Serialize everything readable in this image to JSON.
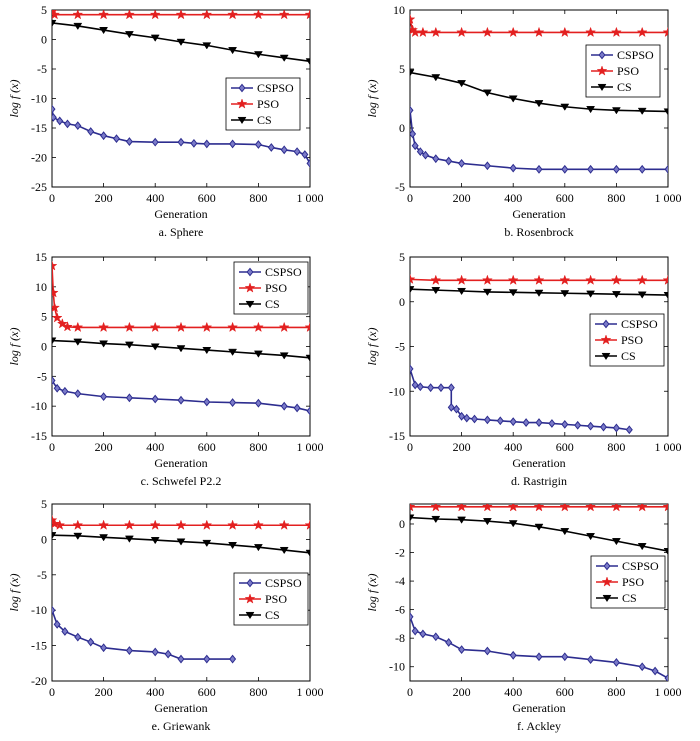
{
  "chart_data": [
    {
      "type": "line",
      "caption": "a. Sphere",
      "xlabel": "Generation",
      "ylabel": "log f (x)",
      "xlim": [
        0,
        1000
      ],
      "ylim": [
        -25,
        5
      ],
      "xticks": [
        0,
        200,
        400,
        600,
        800,
        1000
      ],
      "xtick_labels": [
        "0",
        "200",
        "400",
        "600",
        "800",
        "1 000"
      ],
      "yticks": [
        -25,
        -20,
        -15,
        -10,
        -5,
        0,
        5
      ],
      "legend": "right",
      "series": [
        {
          "name": "CSPSO",
          "color": "#2d2d8f",
          "marker": "diamond",
          "x": [
            0,
            5,
            30,
            60,
            100,
            150,
            200,
            250,
            300,
            400,
            500,
            550,
            600,
            700,
            800,
            850,
            900,
            950,
            980,
            1000
          ],
          "y": [
            -11.8,
            -13.2,
            -13.8,
            -14.3,
            -14.6,
            -15.6,
            -16.3,
            -16.8,
            -17.3,
            -17.4,
            -17.4,
            -17.6,
            -17.7,
            -17.7,
            -17.8,
            -18.3,
            -18.7,
            -19.0,
            -19.5,
            -21.0
          ]
        },
        {
          "name": "PSO",
          "color": "#e32020",
          "marker": "star",
          "x": [
            0,
            10,
            100,
            200,
            300,
            400,
            500,
            600,
            700,
            800,
            900,
            1000
          ],
          "y": [
            4.7,
            4.2,
            4.2,
            4.2,
            4.2,
            4.2,
            4.2,
            4.2,
            4.2,
            4.2,
            4.2,
            4.2
          ]
        },
        {
          "name": "CS",
          "color": "#000000",
          "marker": "triangle-down",
          "x": [
            0,
            100,
            200,
            300,
            400,
            500,
            600,
            700,
            800,
            900,
            1000
          ],
          "y": [
            2.8,
            2.3,
            1.6,
            0.9,
            0.3,
            -0.4,
            -1.0,
            -1.8,
            -2.5,
            -3.1,
            -3.7
          ]
        }
      ]
    },
    {
      "type": "line",
      "caption": "b. Rosenbrock",
      "xlabel": "Generation",
      "ylabel": "log f (x)",
      "xlim": [
        0,
        1000
      ],
      "ylim": [
        -5,
        10
      ],
      "xticks": [
        0,
        200,
        400,
        600,
        800,
        1000
      ],
      "xtick_labels": [
        "0",
        "200",
        "400",
        "600",
        "800",
        "1 000"
      ],
      "yticks": [
        -5,
        0,
        5,
        10
      ],
      "legend": "right",
      "series": [
        {
          "name": "CSPSO",
          "color": "#2d2d8f",
          "marker": "diamond",
          "x": [
            0,
            10,
            20,
            40,
            60,
            100,
            150,
            200,
            300,
            400,
            500,
            600,
            700,
            800,
            900,
            1000
          ],
          "y": [
            1.5,
            -0.5,
            -1.5,
            -2.0,
            -2.3,
            -2.6,
            -2.8,
            -3.0,
            -3.2,
            -3.4,
            -3.5,
            -3.5,
            -3.5,
            -3.5,
            -3.5,
            -3.5
          ]
        },
        {
          "name": "PSO",
          "color": "#e32020",
          "marker": "star",
          "x": [
            0,
            10,
            20,
            50,
            100,
            200,
            300,
            400,
            500,
            600,
            700,
            800,
            900,
            1000
          ],
          "y": [
            9.2,
            8.3,
            8.1,
            8.1,
            8.1,
            8.1,
            8.1,
            8.1,
            8.1,
            8.1,
            8.1,
            8.1,
            8.1,
            8.1
          ]
        },
        {
          "name": "CS",
          "color": "#000000",
          "marker": "triangle-down",
          "x": [
            0,
            100,
            200,
            300,
            400,
            500,
            600,
            700,
            800,
            900,
            1000
          ],
          "y": [
            4.7,
            4.3,
            3.8,
            3.0,
            2.5,
            2.1,
            1.8,
            1.6,
            1.5,
            1.45,
            1.4
          ]
        }
      ]
    },
    {
      "type": "line",
      "caption": "c. Schwefel P2.2",
      "xlabel": "Generation",
      "ylabel": "log f (x)",
      "xlim": [
        0,
        1000
      ],
      "ylim": [
        -15,
        15
      ],
      "xticks": [
        0,
        200,
        400,
        600,
        800,
        1000
      ],
      "xtick_labels": [
        "0",
        "200",
        "400",
        "600",
        "800",
        "1 000"
      ],
      "yticks": [
        -15,
        -10,
        -5,
        0,
        5,
        10,
        15
      ],
      "legend": "top-right",
      "series": [
        {
          "name": "CSPSO",
          "color": "#2d2d8f",
          "marker": "diamond",
          "x": [
            0,
            20,
            50,
            100,
            200,
            300,
            400,
            500,
            600,
            700,
            800,
            900,
            950,
            1000
          ],
          "y": [
            -5.7,
            -7.0,
            -7.5,
            -7.9,
            -8.4,
            -8.6,
            -8.8,
            -9.0,
            -9.3,
            -9.4,
            -9.5,
            -10.0,
            -10.3,
            -10.8
          ]
        },
        {
          "name": "PSO",
          "color": "#e32020",
          "marker": "star",
          "x": [
            0,
            5,
            10,
            20,
            40,
            60,
            100,
            200,
            300,
            400,
            500,
            600,
            700,
            800,
            900,
            1000
          ],
          "y": [
            13.5,
            9.0,
            6.5,
            4.8,
            3.8,
            3.3,
            3.2,
            3.2,
            3.2,
            3.2,
            3.2,
            3.2,
            3.2,
            3.2,
            3.2,
            3.2
          ]
        },
        {
          "name": "CS",
          "color": "#000000",
          "marker": "triangle-down",
          "x": [
            0,
            100,
            200,
            300,
            400,
            500,
            600,
            700,
            800,
            900,
            1000
          ],
          "y": [
            1.0,
            0.8,
            0.5,
            0.3,
            0.0,
            -0.3,
            -0.6,
            -0.9,
            -1.2,
            -1.5,
            -1.9
          ]
        }
      ]
    },
    {
      "type": "line",
      "caption": "d. Rastrigin",
      "xlabel": "Generation",
      "ylabel": "log f (x)",
      "xlim": [
        0,
        1000
      ],
      "ylim": [
        -15,
        5
      ],
      "xticks": [
        0,
        200,
        400,
        600,
        800,
        1000
      ],
      "xtick_labels": [
        "0",
        "200",
        "400",
        "600",
        "800",
        "1 000"
      ],
      "yticks": [
        -15,
        -10,
        -5,
        0,
        5
      ],
      "legend": "right",
      "series": [
        {
          "name": "CSPSO",
          "color": "#2d2d8f",
          "marker": "diamond",
          "x": [
            0,
            20,
            40,
            80,
            120,
            160,
            160,
            180,
            200,
            220,
            250,
            300,
            350,
            400,
            450,
            500,
            550,
            600,
            650,
            700,
            750,
            800,
            850
          ],
          "y": [
            -7.5,
            -9.3,
            -9.5,
            -9.6,
            -9.6,
            -9.6,
            -11.8,
            -12.0,
            -12.8,
            -13.0,
            -13.1,
            -13.2,
            -13.3,
            -13.4,
            -13.5,
            -13.5,
            -13.6,
            -13.7,
            -13.8,
            -13.9,
            -14.0,
            -14.1,
            -14.3
          ]
        },
        {
          "name": "PSO",
          "color": "#e32020",
          "marker": "star",
          "x": [
            0,
            100,
            200,
            300,
            400,
            500,
            600,
            700,
            800,
            900,
            1000
          ],
          "y": [
            2.5,
            2.4,
            2.4,
            2.4,
            2.4,
            2.4,
            2.4,
            2.4,
            2.4,
            2.4,
            2.4
          ]
        },
        {
          "name": "CS",
          "color": "#000000",
          "marker": "triangle-down",
          "x": [
            0,
            100,
            200,
            300,
            400,
            500,
            600,
            700,
            800,
            900,
            1000
          ],
          "y": [
            1.4,
            1.3,
            1.2,
            1.1,
            1.05,
            1.0,
            0.95,
            0.9,
            0.85,
            0.8,
            0.75
          ]
        }
      ]
    },
    {
      "type": "line",
      "caption": "e. Griewank",
      "xlabel": "Generation",
      "ylabel": "log f (x)",
      "xlim": [
        0,
        1000
      ],
      "ylim": [
        -20,
        5
      ],
      "xticks": [
        0,
        200,
        400,
        600,
        800,
        1000
      ],
      "xtick_labels": [
        "0",
        "200",
        "400",
        "600",
        "800",
        "1 000"
      ],
      "yticks": [
        -20,
        -15,
        -10,
        -5,
        0,
        5
      ],
      "legend": "right",
      "series": [
        {
          "name": "CSPSO",
          "color": "#2d2d8f",
          "marker": "diamond",
          "x": [
            0,
            20,
            50,
            100,
            150,
            200,
            300,
            400,
            450,
            500,
            600,
            700
          ],
          "y": [
            -10.0,
            -12.0,
            -13.0,
            -13.8,
            -14.5,
            -15.3,
            -15.7,
            -15.9,
            -16.2,
            -16.9,
            -16.9,
            -16.9
          ]
        },
        {
          "name": "PSO",
          "color": "#e32020",
          "marker": "star",
          "x": [
            0,
            10,
            30,
            100,
            200,
            300,
            400,
            500,
            600,
            700,
            800,
            900,
            1000
          ],
          "y": [
            2.7,
            2.2,
            2.0,
            2.0,
            2.0,
            2.0,
            2.0,
            2.0,
            2.0,
            2.0,
            2.0,
            2.0,
            2.0
          ]
        },
        {
          "name": "CS",
          "color": "#000000",
          "marker": "triangle-down",
          "x": [
            0,
            100,
            200,
            300,
            400,
            500,
            600,
            700,
            800,
            900,
            1000
          ],
          "y": [
            0.6,
            0.5,
            0.3,
            0.1,
            -0.1,
            -0.3,
            -0.5,
            -0.8,
            -1.1,
            -1.5,
            -1.9
          ]
        }
      ]
    },
    {
      "type": "line",
      "caption": "f. Ackley",
      "xlabel": "Generation",
      "ylabel": "log f (x)",
      "xlim": [
        0,
        1000
      ],
      "ylim": [
        -11,
        1.4
      ],
      "xticks": [
        0,
        200,
        400,
        600,
        800,
        1000
      ],
      "xtick_labels": [
        "0",
        "200",
        "400",
        "600",
        "800",
        "1 000"
      ],
      "yticks": [
        -10,
        -8,
        -6,
        -4,
        -2,
        0
      ],
      "legend": "right",
      "series": [
        {
          "name": "CSPSO",
          "color": "#2d2d8f",
          "marker": "diamond",
          "x": [
            0,
            20,
            50,
            100,
            150,
            200,
            300,
            400,
            500,
            600,
            700,
            800,
            900,
            950,
            1000
          ],
          "y": [
            -6.5,
            -7.5,
            -7.7,
            -7.9,
            -8.3,
            -8.8,
            -8.9,
            -9.2,
            -9.3,
            -9.3,
            -9.5,
            -9.7,
            -10.0,
            -10.3,
            -10.8
          ]
        },
        {
          "name": "PSO",
          "color": "#e32020",
          "marker": "star",
          "x": [
            0,
            100,
            200,
            300,
            400,
            500,
            600,
            700,
            800,
            900,
            1000
          ],
          "y": [
            1.2,
            1.2,
            1.2,
            1.2,
            1.2,
            1.2,
            1.2,
            1.2,
            1.2,
            1.2,
            1.2
          ]
        },
        {
          "name": "CS",
          "color": "#000000",
          "marker": "triangle-down",
          "x": [
            0,
            100,
            200,
            300,
            400,
            500,
            600,
            700,
            800,
            900,
            1000
          ],
          "y": [
            0.45,
            0.35,
            0.3,
            0.2,
            0.05,
            -0.2,
            -0.5,
            -0.85,
            -1.2,
            -1.55,
            -1.9
          ]
        }
      ]
    }
  ]
}
